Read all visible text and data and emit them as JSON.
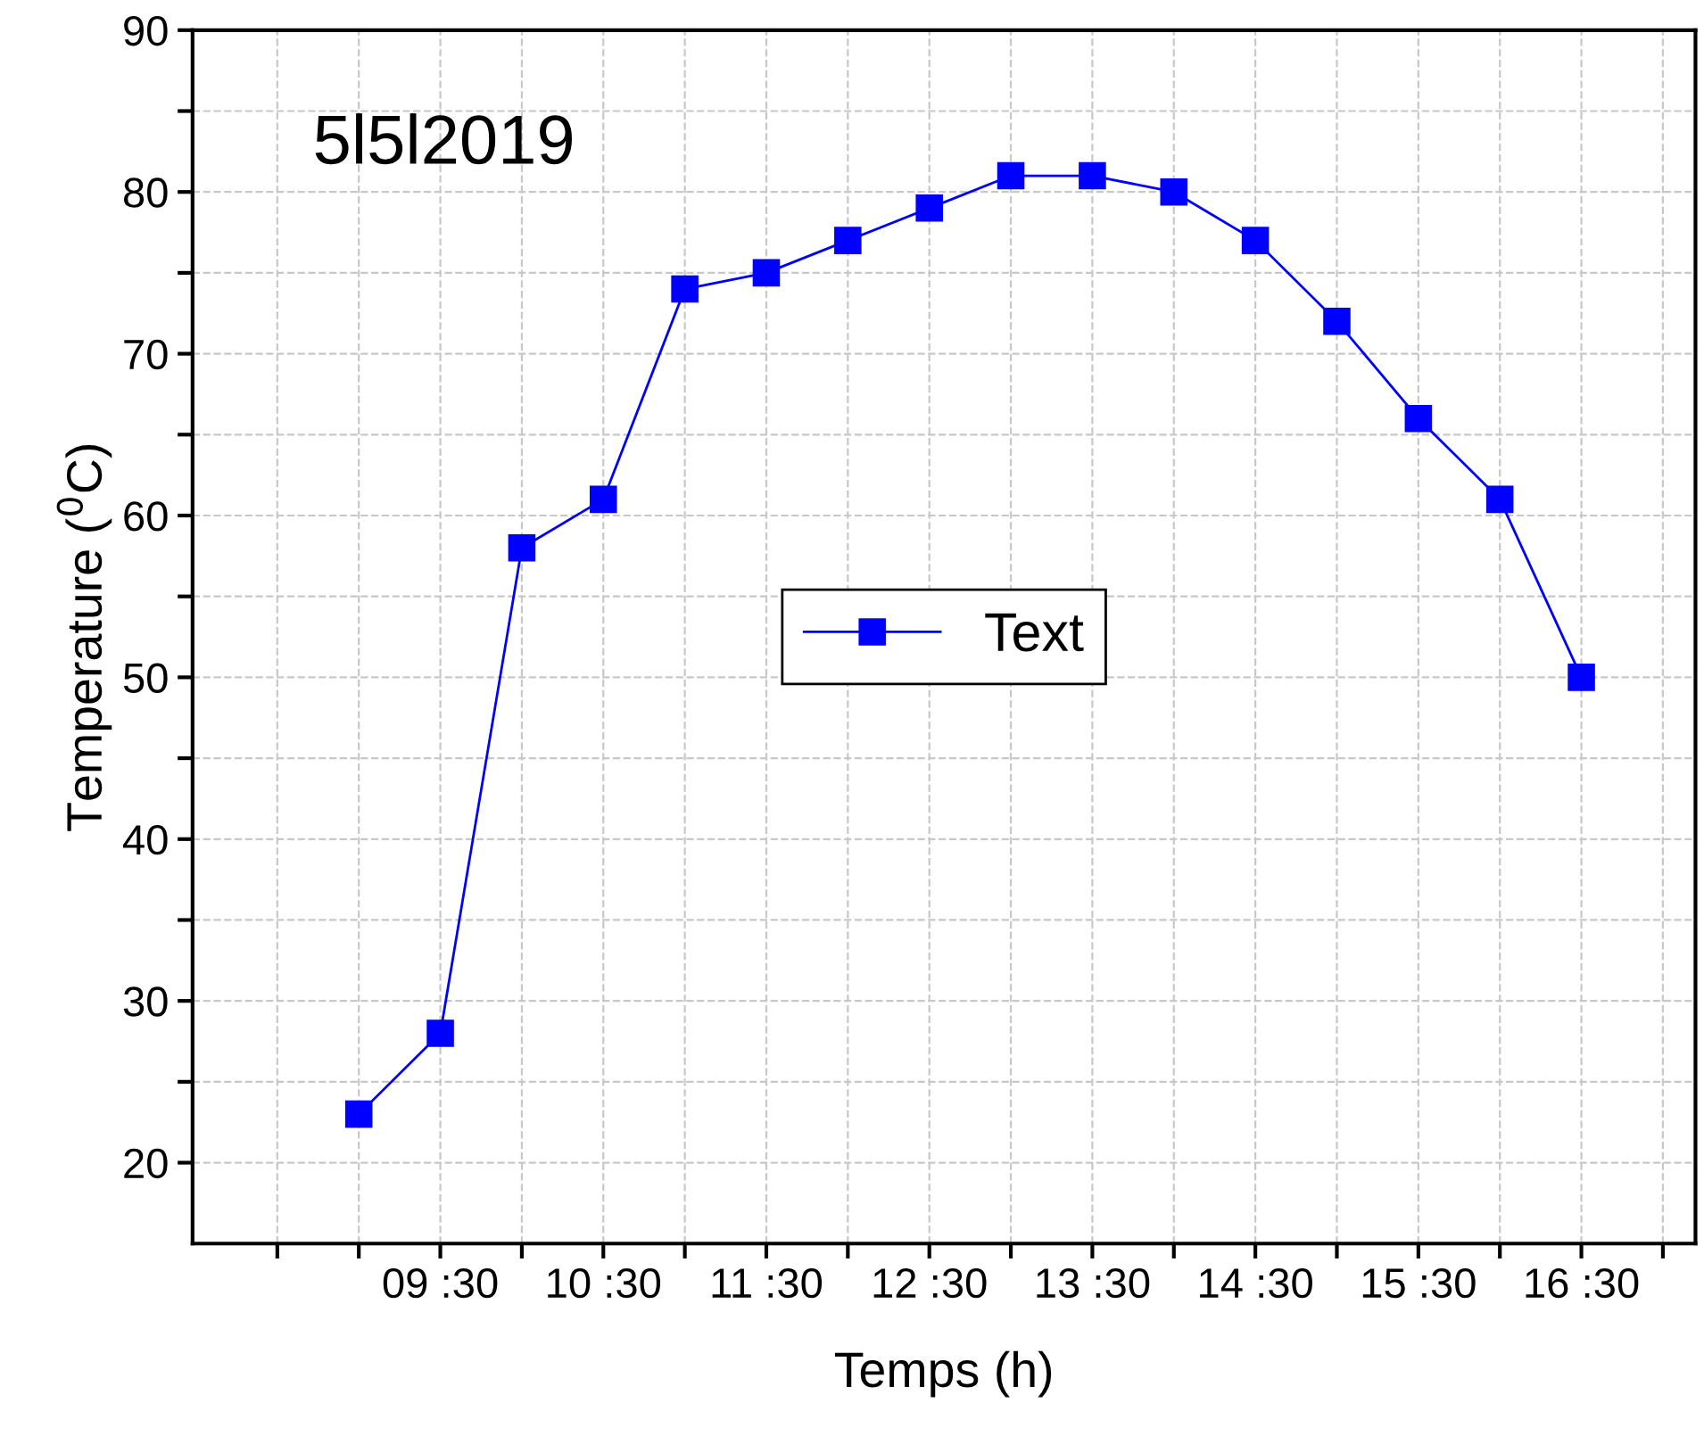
{
  "chart_data": {
    "type": "line",
    "xlabel": "Temps (h)",
    "ylabel": "Temperature ($^{0}$C)",
    "categories": [
      null,
      "09 :30",
      null,
      "10 :30",
      null,
      "11 :30",
      null,
      "12 :30",
      null,
      "13 :30",
      null,
      "14 :30",
      null,
      "15 :30",
      null,
      "16 :30"
    ],
    "series": [
      {
        "name": "Text",
        "color": "#0000ff",
        "values": [
          23,
          28,
          58,
          61,
          74,
          75,
          77,
          79,
          81,
          81,
          80,
          77,
          72,
          66,
          61,
          50
        ]
      }
    ],
    "ylim": [
      15,
      90
    ],
    "yticks": [
      20,
      {
        "value": 25,
        "label": null
      },
      30,
      {
        "value": 35,
        "label": null
      },
      40,
      {
        "value": 45,
        "label": null
      },
      50,
      {
        "value": 55,
        "label": null
      },
      60,
      {
        "value": 65,
        "label": null
      },
      70,
      {
        "value": 75,
        "label": null
      },
      80,
      {
        "value": 85,
        "label": null
      },
      90
    ],
    "annotations": [
      "5l5l2019"
    ],
    "grid": true,
    "legend": "center",
    "marker": "square",
    "line_style": "solid"
  }
}
